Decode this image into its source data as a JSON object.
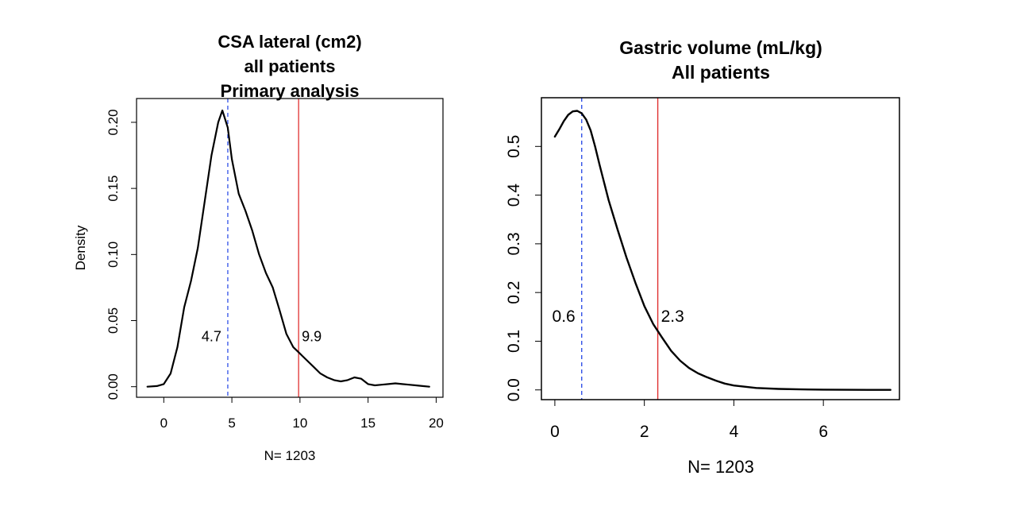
{
  "chart_data": [
    {
      "type": "line",
      "title_lines": [
        "CSA lateral (cm2)",
        "all patients",
        "Primary analysis"
      ],
      "xlabel": "N= 1203",
      "ylabel": "Density",
      "xlim": [
        -2,
        20.5
      ],
      "ylim": [
        -0.008,
        0.218
      ],
      "xticks": [
        0,
        5,
        10,
        15,
        20
      ],
      "yticks": [
        0.0,
        0.05,
        0.1,
        0.15,
        0.2
      ],
      "ytick_labels": [
        "0.00",
        "0.05",
        "0.10",
        "0.15",
        "0.20"
      ],
      "series": [
        {
          "x": [
            -1.2,
            -0.5,
            0,
            0.5,
            1,
            1.5,
            2,
            2.5,
            3,
            3.5,
            4,
            4.3,
            4.7,
            5,
            5.5,
            6,
            6.5,
            7,
            7.5,
            8,
            8.5,
            9,
            9.5,
            10,
            10.5,
            11,
            11.5,
            12,
            12.5,
            13,
            13.5,
            14,
            14.5,
            15,
            15.5,
            16,
            16.5,
            17,
            17.5,
            18,
            18.5,
            19,
            19.5
          ],
          "y": [
            0.0,
            0.0005,
            0.002,
            0.01,
            0.03,
            0.06,
            0.08,
            0.105,
            0.14,
            0.175,
            0.2,
            0.209,
            0.196,
            0.172,
            0.146,
            0.133,
            0.118,
            0.1,
            0.086,
            0.075,
            0.058,
            0.04,
            0.03,
            0.025,
            0.02,
            0.015,
            0.01,
            0.007,
            0.005,
            0.004,
            0.005,
            0.007,
            0.006,
            0.002,
            0.001,
            0.0015,
            0.002,
            0.0025,
            0.002,
            0.0015,
            0.001,
            0.0005,
            0.0
          ]
        }
      ],
      "vlines": [
        {
          "x": 4.7,
          "style": "dashed",
          "color": "#3050e8",
          "label": "4.7",
          "label_side": "left",
          "label_y": 0.038
        },
        {
          "x": 9.9,
          "style": "solid",
          "color": "#e03030",
          "label": "9.9",
          "label_side": "right",
          "label_y": 0.038
        }
      ],
      "grid": false
    },
    {
      "type": "line",
      "title_lines": [
        "Gastric volume (mL/kg)",
        "All patients"
      ],
      "xlabel": "N= 1203",
      "ylabel": "",
      "xlim": [
        -0.3,
        7.7
      ],
      "ylim": [
        -0.02,
        0.6
      ],
      "xticks": [
        0,
        2,
        4,
        6
      ],
      "yticks": [
        0.0,
        0.1,
        0.2,
        0.3,
        0.4,
        0.5
      ],
      "ytick_labels": [
        "0.0",
        "0.1",
        "0.2",
        "0.3",
        "0.4",
        "0.5"
      ],
      "series": [
        {
          "x": [
            0,
            0.1,
            0.2,
            0.3,
            0.4,
            0.5,
            0.6,
            0.7,
            0.8,
            0.9,
            1.0,
            1.2,
            1.4,
            1.6,
            1.8,
            2.0,
            2.2,
            2.4,
            2.6,
            2.8,
            3.0,
            3.2,
            3.4,
            3.6,
            3.8,
            4.0,
            4.5,
            5.0,
            5.5,
            6.0,
            6.5,
            7.0,
            7.5
          ],
          "y": [
            0.52,
            0.535,
            0.552,
            0.565,
            0.572,
            0.573,
            0.568,
            0.555,
            0.533,
            0.5,
            0.462,
            0.39,
            0.33,
            0.272,
            0.22,
            0.172,
            0.135,
            0.107,
            0.08,
            0.06,
            0.045,
            0.034,
            0.026,
            0.019,
            0.013,
            0.009,
            0.004,
            0.002,
            0.001,
            0.0005,
            0.0002,
            0.0001,
            0.0
          ]
        }
      ],
      "vlines": [
        {
          "x": 0.6,
          "style": "dashed",
          "color": "#3050e8",
          "label": "0.6",
          "label_side": "left",
          "label_y": 0.15
        },
        {
          "x": 2.3,
          "style": "solid",
          "color": "#e03030",
          "label": "2.3",
          "label_side": "right",
          "label_y": 0.15
        }
      ],
      "grid": false
    }
  ]
}
